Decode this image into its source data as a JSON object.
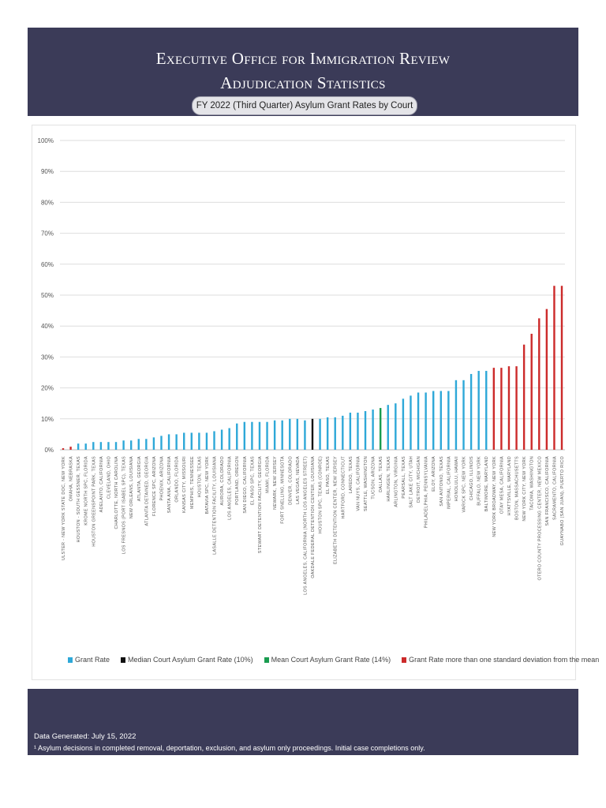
{
  "header": {
    "title_line1": "Executive Office for Immigration Review",
    "title_line2": "Adjudication Statistics",
    "subtitle": "FY 2022 (Third Quarter) Asylum Grant Rates by Court"
  },
  "footer": {
    "data_generated": "Data Generated: July 15, 2022",
    "note": "¹ Asylum decisions in completed removal, deportation, exclusion, and asylum only proceedings. Initial case completions only."
  },
  "colors": {
    "grant_rate": "#2ea8d8",
    "median": "#111111",
    "mean": "#1a9c50",
    "outlier": "#cc2a2a",
    "header_bg": "#3b3b58"
  },
  "chart_data": {
    "type": "bar",
    "ylim": [
      0,
      100
    ],
    "yticks": [
      "0%",
      "10%",
      "20%",
      "30%",
      "40%",
      "50%",
      "60%",
      "70%",
      "80%",
      "90%",
      "100%"
    ],
    "grid": true,
    "legend_placement": "bottom",
    "legend": [
      {
        "label": "Grant Rate",
        "color": "#2ea8d8"
      },
      {
        "label": "Median Court Asylum Grant Rate (10%)",
        "color": "#111111"
      },
      {
        "label": "Mean Court Asylum Grant Rate (14%)",
        "color": "#1a9c50"
      },
      {
        "label": "Grant Rate more than one standard deviation from the mean",
        "color": "#cc2a2a"
      }
    ],
    "categories": [
      "Ulster - New York State Doc, New York",
      "Omaha, Nebraska",
      "Houston - South Gessner, Texas",
      "Krome North SPC, Florida",
      "Houston Greenspoint Park, Texas",
      "Adelanto, California",
      "Cleveland, Ohio",
      "Charlotte, North Carolina",
      "Los Fresnos (Port Isabel SPC), Texas",
      "New Orleans, Louisiana",
      "Atlanta, Georgia",
      "Atlanta Detained, Georgia",
      "Florence SPC, Arizona",
      "Phoenix, Arizona",
      "Santa Ana, California",
      "Orlando, Florida",
      "Kansas City, Missouri",
      "Memphis, Tennessee",
      "Houston, Texas",
      "Batavia SPC, New York",
      "LaSalle Detention Facility, Louisiana",
      "Aurora, Colorado",
      "Los Angeles, California",
      "Portland, Oregon",
      "San Diego, California",
      "El Paso SPC, Texas",
      "Stewart Detention Facility, Georgia",
      "Miami, Florida",
      "Newark, New Jersey",
      "Fort Snelling, Minnesota",
      "Denver, Colorado",
      "Las Vegas, Nevada",
      "Los Angeles, California (North Los Angeles Street)",
      "Oakdale Federal Detention Center, Louisiana",
      "Houston SPC, Texas (Conroe)",
      "El Paso, Texas",
      "Elizabeth Detention Center, New Jersey",
      "Hartford, Connecticut",
      "Laredo, Texas",
      "Van Nuys, California",
      "Seattle, Washington",
      "Tucson, Arizona",
      "Dallas, Texas",
      "Harlingen, Texas",
      "Arlington, Virginia",
      "Pearsall, Texas",
      "Salt Lake City, Utah",
      "Detroit, Michigan",
      "Philadelphia, Pennsylvania",
      "Eloy, Arizona",
      "San Antonio, Texas",
      "Imperial, California",
      "Honolulu, Hawaii",
      "Varick SPC, New York",
      "Chicago, Illinois",
      "Buffalo, New York",
      "Baltimore, Maryland",
      "New York Broadway, New York",
      "Otay Mesa, California",
      "Hyattsville, Maryland",
      "Boston, Massachusetts",
      "New York City, New York",
      "Tacoma, Washington",
      "Otero County Processing Center, New Mexico",
      "San Francisco, California",
      "Sacramento, California",
      "Guaynabo (San Juan), Puerto Rico"
    ],
    "values": [
      0.5,
      1,
      2,
      2,
      2.5,
      2.5,
      2.5,
      2.5,
      3,
      3,
      3.5,
      3.5,
      4,
      4.5,
      5,
      5,
      5.5,
      5.5,
      5.5,
      5.5,
      6,
      6.5,
      7,
      8.5,
      9,
      9,
      9,
      9,
      9.5,
      9.5,
      10,
      10,
      9.5,
      10,
      10,
      10.5,
      10.5,
      11,
      12,
      12,
      12.5,
      13,
      13.5,
      14.5,
      15,
      16.5,
      17.5,
      18.5,
      18.5,
      19,
      19,
      19,
      22.5,
      22.5,
      24.5,
      25.5,
      25.5,
      26.5,
      26.5,
      27,
      27,
      34,
      37.5,
      42.5,
      45.5,
      53,
      53
    ],
    "bar_kind": [
      "outlier",
      "outlier",
      "grant",
      "grant",
      "grant",
      "grant",
      "grant",
      "grant",
      "grant",
      "grant",
      "grant",
      "grant",
      "grant",
      "grant",
      "grant",
      "grant",
      "grant",
      "grant",
      "grant",
      "grant",
      "grant",
      "grant",
      "grant",
      "grant",
      "grant",
      "grant",
      "grant",
      "grant",
      "grant",
      "grant",
      "grant",
      "grant",
      "grant",
      "median",
      "grant",
      "grant",
      "grant",
      "grant",
      "grant",
      "grant",
      "grant",
      "grant",
      "mean",
      "grant",
      "grant",
      "grant",
      "grant",
      "grant",
      "grant",
      "grant",
      "grant",
      "grant",
      "grant",
      "grant",
      "grant",
      "grant",
      "grant",
      "outlier",
      "outlier",
      "outlier",
      "outlier",
      "outlier",
      "outlier",
      "outlier",
      "outlier",
      "outlier",
      "outlier"
    ]
  }
}
